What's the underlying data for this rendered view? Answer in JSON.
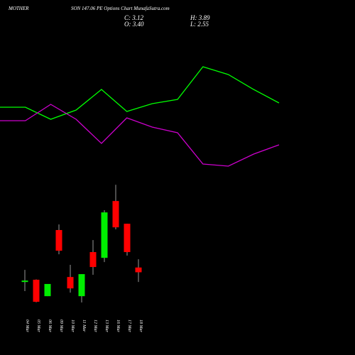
{
  "chart_data": [
    {
      "type": "candlestick",
      "title": "MOTHER",
      "subtitle": "SON 147.06 PE Options Chart MunafaSutra.com",
      "ohlc_labels": [
        "C: 3.12",
        "H: 3.89",
        "O: 3.40",
        "L: 2.55"
      ],
      "categories": [
        "04 Mar",
        "05 Mar",
        "06 Mar",
        "09 Mar",
        "10 Mar",
        "11 Mar",
        "12 Mar",
        "13 Mar",
        "16 Mar",
        "17 Mar",
        "18 Mar"
      ],
      "open": [
        2.55,
        2.68,
        1.71,
        5.61,
        2.84,
        1.71,
        4.31,
        3.97,
        7.32,
        5.98,
        3.4
      ],
      "high": [
        3.26,
        2.7,
        2.43,
        5.94,
        3.56,
        3.01,
        5.02,
        6.78,
        8.28,
        5.98,
        3.89
      ],
      "low": [
        2.01,
        1.35,
        1.71,
        4.18,
        1.92,
        1.34,
        2.97,
        3.72,
        5.65,
        4.1,
        2.55
      ],
      "close": [
        2.63,
        1.38,
        2.43,
        4.39,
        2.17,
        3.01,
        3.43,
        6.65,
        5.77,
        4.31,
        3.12
      ],
      "up_color": "#00ee00",
      "down_color": "#ff0000",
      "wick_color": "#999999",
      "ylim": [
        0,
        9
      ]
    },
    {
      "type": "line",
      "x": [
        0,
        1,
        2,
        3,
        4,
        5,
        6,
        7,
        8,
        9,
        10,
        11
      ],
      "xlim": [
        0,
        11
      ],
      "ylim": [
        0,
        300
      ],
      "series": [
        {
          "color": "#00ff00",
          "values": [
            149,
            149,
            132,
            145,
            174,
            143,
            154,
            160,
            206,
            195,
            174,
            155
          ]
        },
        {
          "color": "#cc00cc",
          "values": [
            130,
            130,
            153,
            132,
            98,
            134,
            121,
            113,
            69,
            66,
            83,
            96
          ]
        }
      ]
    }
  ]
}
